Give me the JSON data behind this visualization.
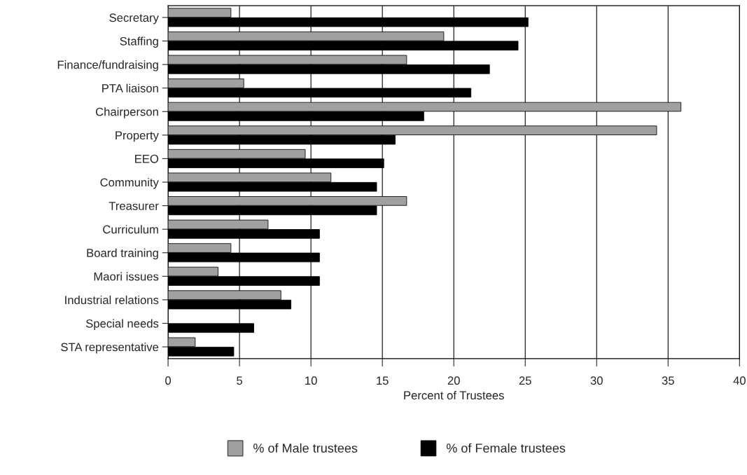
{
  "chart_data": {
    "type": "bar",
    "orientation": "horizontal",
    "xlabel": "Percent of Trustees",
    "categories": [
      "Secretary",
      "Staffing",
      "Finance/fundraising",
      "PTA liaison",
      "Chairperson",
      "Property",
      "EEO",
      "Community",
      "Treasurer",
      "Curriculum",
      "Board training",
      "Maori issues",
      "Industrial relations",
      "Special needs",
      "STA representative"
    ],
    "series": [
      {
        "name": "% of Male trustees",
        "color": "#a0a0a0",
        "values": [
          4.4,
          19.3,
          16.7,
          5.3,
          35.9,
          34.2,
          9.6,
          11.4,
          16.7,
          7.0,
          4.4,
          3.5,
          7.9,
          null,
          1.9
        ]
      },
      {
        "name": "% of Female trustees",
        "color": "#000000",
        "values": [
          25.2,
          24.5,
          22.5,
          21.2,
          17.9,
          15.9,
          15.1,
          14.6,
          14.6,
          10.6,
          10.6,
          10.6,
          8.6,
          6.0,
          4.6
        ]
      }
    ],
    "xlim": [
      0,
      40
    ],
    "xticks": [
      0,
      5,
      10,
      15,
      20,
      25,
      30,
      35,
      40
    ],
    "grid": "x",
    "legend": "bottom"
  }
}
